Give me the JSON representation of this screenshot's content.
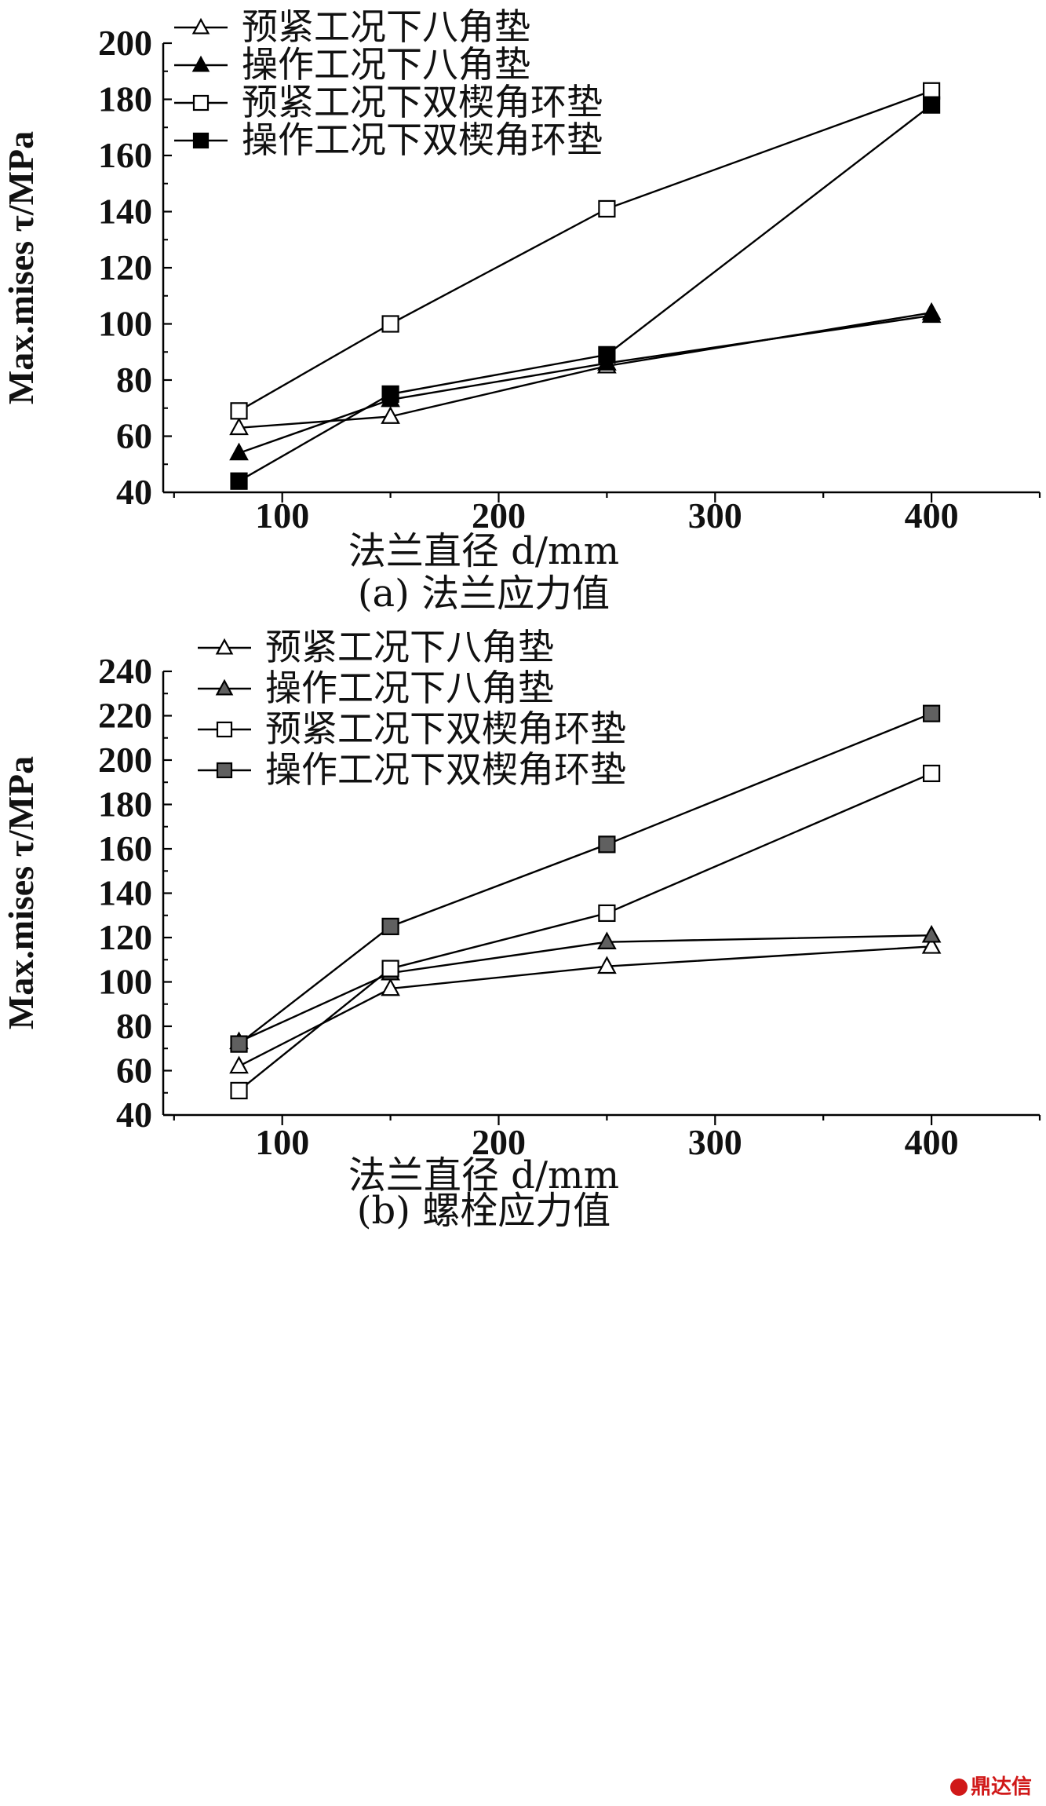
{
  "watermark": "鼎达信",
  "chart_data": [
    {
      "type": "line",
      "caption": "(a) 法兰应力值",
      "xlabel": "法兰直径 d/mm",
      "ylabel": "Max.mises τ/MPa",
      "xlim": [
        45,
        450
      ],
      "ylim": [
        40,
        200
      ],
      "xticks": [
        100,
        200,
        300,
        400
      ],
      "yticks": [
        40,
        60,
        80,
        100,
        120,
        140,
        160,
        180,
        200
      ],
      "legend_position": "top-left",
      "x": [
        80,
        150,
        250,
        400
      ],
      "series": [
        {
          "name": "预紧工况下八角垫",
          "marker": "triangle-open",
          "values": [
            63,
            67,
            85,
            104
          ]
        },
        {
          "name": "操作工况下八角垫",
          "marker": "triangle-filled",
          "values": [
            54,
            73,
            86,
            103
          ]
        },
        {
          "name": "预紧工况下双楔角环垫",
          "marker": "square-open",
          "values": [
            69,
            100,
            141,
            183
          ]
        },
        {
          "name": "操作工况下双楔角环垫",
          "marker": "square-filled",
          "values": [
            44,
            75,
            89,
            178
          ]
        }
      ]
    },
    {
      "type": "line",
      "caption": "(b) 螺栓应力值",
      "xlabel": "法兰直径 d/mm",
      "ylabel": "Max.mises τ/MPa",
      "xlim": [
        45,
        450
      ],
      "ylim": [
        40,
        240
      ],
      "xticks": [
        100,
        200,
        300,
        400
      ],
      "yticks": [
        40,
        60,
        80,
        100,
        120,
        140,
        160,
        180,
        200,
        220,
        240
      ],
      "legend_position": "top-left",
      "x": [
        80,
        150,
        250,
        400
      ],
      "series": [
        {
          "name": "预紧工况下八角垫",
          "marker": "triangle-open",
          "values": [
            62,
            97,
            107,
            116
          ]
        },
        {
          "name": "操作工况下八角垫",
          "marker": "triangle-gray",
          "values": [
            73,
            104,
            118,
            121
          ]
        },
        {
          "name": "预紧工况下双楔角环垫",
          "marker": "square-open",
          "values": [
            51,
            106,
            131,
            194
          ]
        },
        {
          "name": "操作工况下双楔角环垫",
          "marker": "square-gray",
          "values": [
            72,
            125,
            162,
            221
          ]
        }
      ]
    }
  ]
}
